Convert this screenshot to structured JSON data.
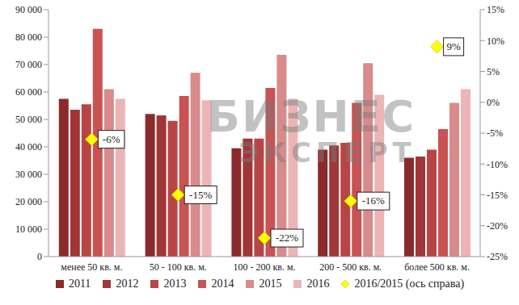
{
  "chart_data": {
    "type": "bar",
    "categories": [
      "менее 50 кв. м.",
      "50 - 100 кв. м.",
      "100 - 200 кв. м.",
      "200 - 500 кв. м.",
      "более 500 кв. м."
    ],
    "series": [
      {
        "name": "2011",
        "color": "#8b2a2a",
        "values": [
          57500,
          52000,
          39500,
          39000,
          36000
        ]
      },
      {
        "name": "2012",
        "color": "#a23636",
        "values": [
          53500,
          51500,
          43000,
          40500,
          36500
        ]
      },
      {
        "name": "2013",
        "color": "#b84545",
        "values": [
          55500,
          49500,
          43000,
          41500,
          39000
        ]
      },
      {
        "name": "2014",
        "color": "#c95252",
        "values": [
          83000,
          58500,
          61500,
          56000,
          46500
        ]
      },
      {
        "name": "2015",
        "color": "#d98a8a",
        "values": [
          61000,
          67000,
          73500,
          70500,
          56000
        ]
      },
      {
        "name": "2016",
        "color": "#ebb5b5",
        "values": [
          57500,
          57000,
          57500,
          59000,
          61000
        ]
      },
      {
        "name": "2016/2015 (ось справа)",
        "color": "#ffff00",
        "type": "scatter",
        "marker": "diamond",
        "axis": "y2",
        "data_labels": true,
        "values": [
          -6,
          -15,
          -22,
          -16,
          9
        ],
        "value_labels": [
          "-6%",
          "-15%",
          "-22%",
          "-16%",
          "9%"
        ]
      }
    ],
    "ylim": [
      0,
      90000
    ],
    "yticks": [
      0,
      {
        "value": 10000,
        "label": "10 000"
      },
      {
        "value": 20000,
        "label": "20 000"
      },
      {
        "value": 30000,
        "label": "30 000"
      },
      {
        "value": 40000,
        "label": "40 000"
      },
      {
        "value": 50000,
        "label": "50 000"
      },
      {
        "value": 60000,
        "label": "60 000"
      },
      {
        "value": 70000,
        "label": "70 000"
      },
      {
        "value": 80000,
        "label": "80 000"
      },
      {
        "value": 90000,
        "label": "90 000"
      }
    ],
    "y2lim": [
      -25,
      15
    ],
    "y2ticks": [
      {
        "value": -25,
        "label": "-25%"
      },
      {
        "value": -20,
        "label": "-20%"
      },
      {
        "value": -15,
        "label": "-15%"
      },
      {
        "value": -10,
        "label": "-10%"
      },
      {
        "value": -5,
        "label": "-5%"
      },
      {
        "value": 0,
        "label": "0%"
      },
      {
        "value": 5,
        "label": "5%"
      },
      {
        "value": 10,
        "label": "10%"
      },
      {
        "value": 15,
        "label": "15%"
      }
    ],
    "grid": false,
    "legend": "bottom",
    "annotations": [
      "БИЗНЕС",
      "ЭКСПЕРТ"
    ]
  }
}
